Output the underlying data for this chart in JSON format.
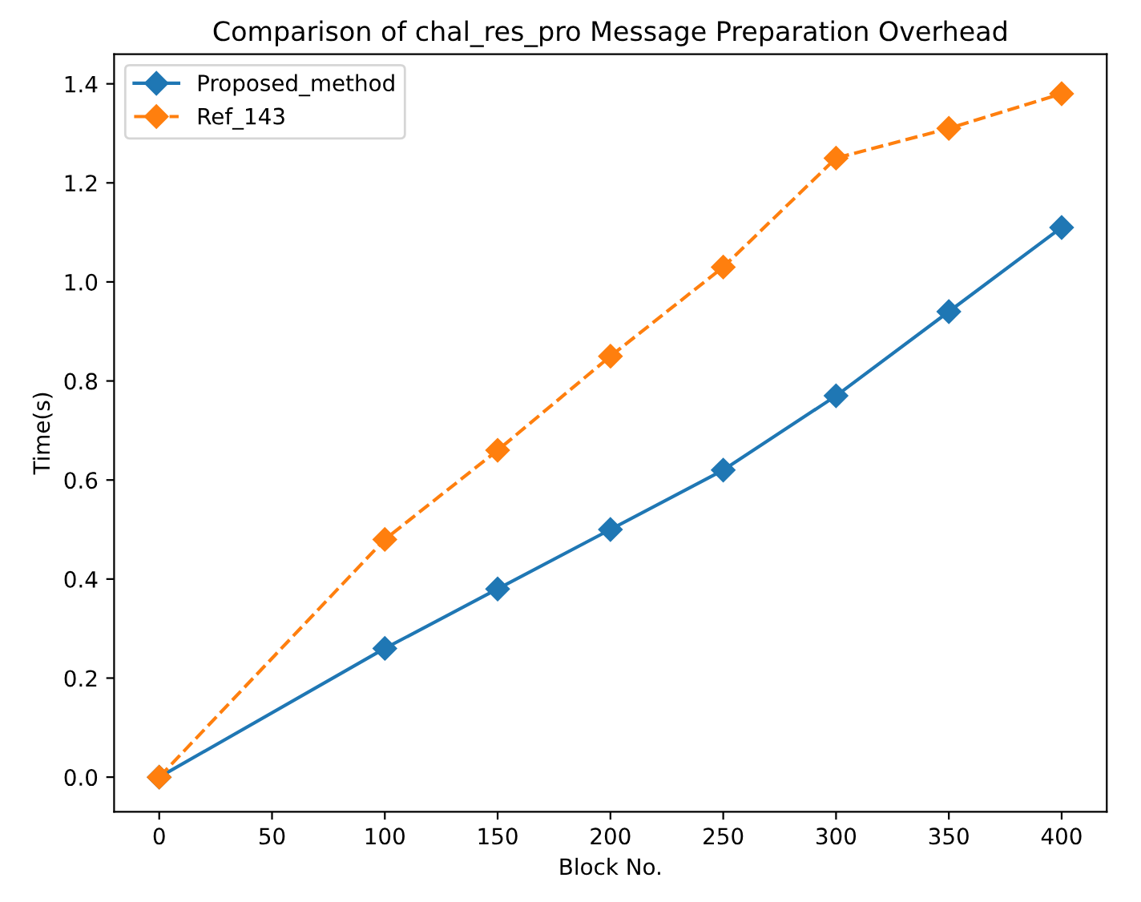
{
  "chart_data": {
    "type": "line",
    "title": "Comparison of chal_res_pro Message Preparation Overhead",
    "xlabel": "Block No.",
    "ylabel": "Time(s)",
    "x": [
      0,
      100,
      150,
      200,
      250,
      300,
      350,
      400
    ],
    "series": [
      {
        "name": "Proposed_method",
        "color": "#1f77b4",
        "values": [
          0,
          0.26,
          0.38,
          0.5,
          0.62,
          0.77,
          0.94,
          1.11
        ],
        "line_style": "solid"
      },
      {
        "name": "Ref_143",
        "color": "#ff7f0e",
        "values": [
          0,
          0.48,
          0.66,
          0.85,
          1.03,
          1.25,
          1.31,
          1.38
        ],
        "line_style": "dashed"
      }
    ],
    "marker": "diamond",
    "xlim": [
      -20,
      420
    ],
    "ylim": [
      -0.07,
      1.46
    ],
    "xticks": [
      0,
      50,
      100,
      150,
      200,
      250,
      300,
      350,
      400
    ],
    "yticks": [
      {
        "value": 0,
        "label": "0.0"
      },
      {
        "value": 0.2,
        "label": "0.2"
      },
      {
        "value": 0.4,
        "label": "0.4"
      },
      {
        "value": 0.6,
        "label": "0.6"
      },
      {
        "value": 0.8,
        "label": "0.8"
      },
      {
        "value": 1.0,
        "label": "1.0"
      },
      {
        "value": 1.2,
        "label": "1.2"
      },
      {
        "value": 1.4,
        "label": "1.4"
      }
    ],
    "grid": false,
    "legend": "top left"
  }
}
